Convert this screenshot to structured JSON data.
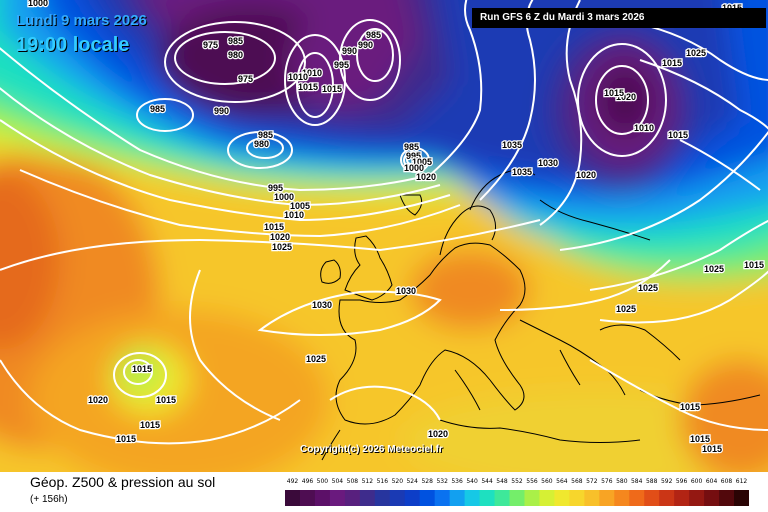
{
  "header": {
    "date_label": "Lundi 9 mars 2026",
    "time_label": "19:00 locale",
    "run_label": "Run GFS 6 Z du Mardi 3 mars 2026"
  },
  "footer": {
    "title": "Géop. Z500 & pression au sol",
    "subtitle": "(+ 156h)",
    "copyright": "Copyright(c) 2026 Meteociel.fr"
  },
  "legend": {
    "values": [
      "492",
      "496",
      "500",
      "504",
      "508",
      "512",
      "516",
      "520",
      "524",
      "528",
      "532",
      "536",
      "540",
      "544",
      "548",
      "552",
      "556",
      "560",
      "564",
      "568",
      "572",
      "576",
      "580",
      "584",
      "588",
      "592",
      "596",
      "600",
      "604",
      "608",
      "612"
    ],
    "colors": [
      "#3a0a3a",
      "#4e0d52",
      "#5c1068",
      "#6a1a7e",
      "#58207e",
      "#3e2c8c",
      "#27359e",
      "#1a3ab4",
      "#0d3ec8",
      "#0052e0",
      "#0a72f0",
      "#12a0f0",
      "#16c8e6",
      "#1ee0c0",
      "#3ee89a",
      "#74ee6a",
      "#aaf048",
      "#d6f034",
      "#f0e82e",
      "#f7d62c",
      "#f8c02a",
      "#f8a424",
      "#f5871e",
      "#ef6a1a",
      "#e14e18",
      "#cb3616",
      "#b22414",
      "#941812",
      "#750e10",
      "#52080c",
      "#2a0404"
    ]
  },
  "isobars": [
    {
      "value": "1000"
    },
    {
      "value": "975"
    },
    {
      "value": "985"
    },
    {
      "value": "980"
    },
    {
      "value": "975"
    },
    {
      "value": "1010"
    },
    {
      "value": "990"
    },
    {
      "value": "985"
    },
    {
      "value": "990"
    },
    {
      "value": "995"
    },
    {
      "value": "985"
    },
    {
      "value": "990"
    },
    {
      "value": "985"
    },
    {
      "value": "980"
    },
    {
      "value": "995"
    },
    {
      "value": "1000"
    },
    {
      "value": "1005"
    },
    {
      "value": "1010"
    },
    {
      "value": "1015"
    },
    {
      "value": "1020"
    },
    {
      "value": "1025"
    },
    {
      "value": "985"
    },
    {
      "value": "995"
    },
    {
      "value": "1005"
    },
    {
      "value": "1000"
    },
    {
      "value": "1010"
    },
    {
      "value": "1015"
    },
    {
      "value": "1020"
    },
    {
      "value": "1015"
    },
    {
      "value": "1035"
    },
    {
      "value": "1030"
    },
    {
      "value": "1035"
    },
    {
      "value": "1020"
    },
    {
      "value": "1025"
    },
    {
      "value": "1030"
    },
    {
      "value": "1030"
    },
    {
      "value": "1025"
    },
    {
      "value": "1025"
    },
    {
      "value": "1025"
    },
    {
      "value": "1015"
    },
    {
      "value": "1015"
    },
    {
      "value": "1015"
    },
    {
      "value": "1015"
    },
    {
      "value": "1020"
    },
    {
      "value": "1015"
    },
    {
      "value": "1015"
    },
    {
      "value": "1015"
    },
    {
      "value": "1020"
    },
    {
      "value": "1015"
    },
    {
      "value": "1015"
    },
    {
      "value": "1015"
    },
    {
      "value": "1015"
    },
    {
      "value": "1020"
    },
    {
      "value": "1025"
    },
    {
      "value": "1015"
    },
    {
      "value": "1010"
    }
  ]
}
